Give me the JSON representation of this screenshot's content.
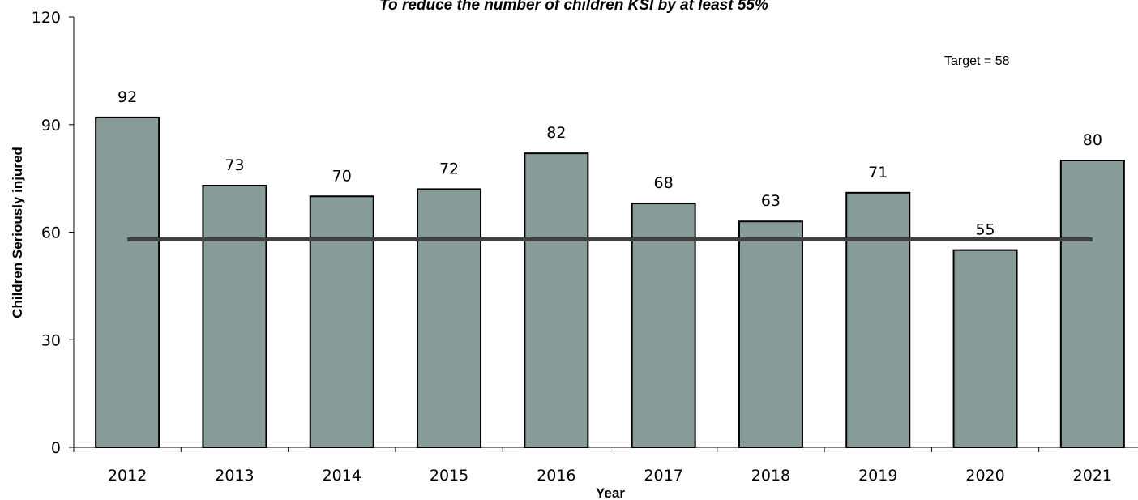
{
  "chart_data": {
    "type": "bar",
    "title": "To reduce the number of children KSI by at least 55%",
    "xlabel": "Year",
    "ylabel": "Children Seriously injured",
    "categories": [
      "2012",
      "2013",
      "2014",
      "2015",
      "2016",
      "2017",
      "2018",
      "2019",
      "2020",
      "2021"
    ],
    "values": [
      92,
      73,
      70,
      72,
      82,
      68,
      63,
      71,
      55,
      80
    ],
    "ylim": [
      0,
      120
    ],
    "yticks": [
      0,
      30,
      60,
      90,
      120
    ],
    "target": {
      "value": 58,
      "label": "Target = 58",
      "color": "#404040"
    },
    "bar_color": "#879c99",
    "bar_edge_color": "#000000",
    "grid": false,
    "legend": "none"
  }
}
